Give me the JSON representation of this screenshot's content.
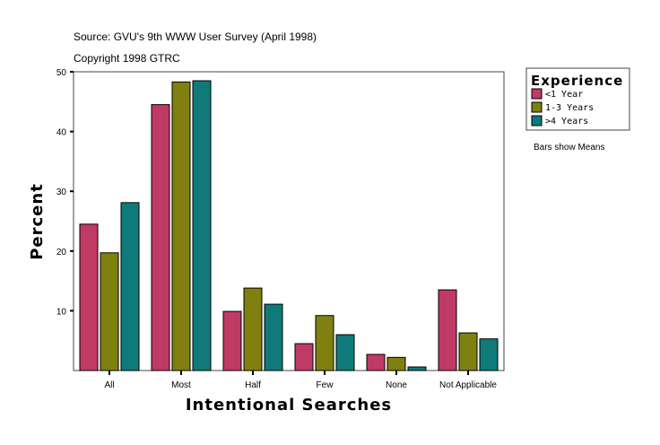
{
  "chart_data": {
    "type": "bar",
    "title": "Source: GVU's 9th WWW User Survey (April 1998)",
    "subtitle": "Copyright 1998 GTRC",
    "xlabel": "Intentional Searches",
    "ylabel": "Percent",
    "ylim": [
      0,
      50
    ],
    "yticks": [
      10,
      20,
      30,
      40,
      50
    ],
    "categories": [
      "All",
      "Most",
      "Half",
      "Few",
      "None",
      "Not Applicable"
    ],
    "legend_title": "Experience",
    "legend_position": "right",
    "note": "Bars show Means",
    "series": [
      {
        "name": "<1 Year",
        "color": "#c03a66",
        "values": [
          24.5,
          44.5,
          9.9,
          4.5,
          2.7,
          13.5
        ]
      },
      {
        "name": "1-3 Years",
        "color": "#808010",
        "values": [
          19.7,
          48.3,
          13.8,
          9.2,
          2.2,
          6.3
        ]
      },
      {
        "name": ">4 Years",
        "color": "#0f7a7a",
        "values": [
          28.1,
          48.5,
          11.1,
          6.0,
          0.6,
          5.3
        ]
      }
    ]
  }
}
